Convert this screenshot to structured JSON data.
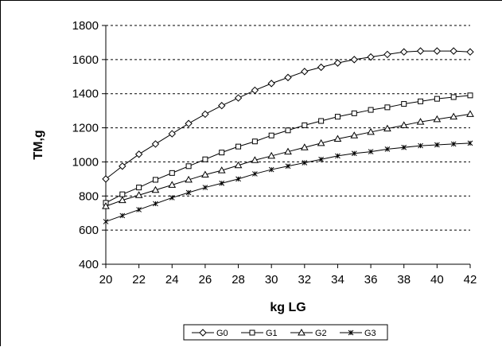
{
  "chart_data": {
    "type": "line",
    "title": "",
    "xlabel": "kg LG",
    "ylabel": "TM,g",
    "xlim": [
      20,
      42
    ],
    "ylim": [
      400,
      1800
    ],
    "xticks": [
      20,
      22,
      24,
      26,
      28,
      30,
      32,
      34,
      36,
      38,
      40,
      42
    ],
    "yticks": [
      400,
      600,
      800,
      1000,
      1200,
      1400,
      1600,
      1800
    ],
    "grid": "horizontal dashed",
    "legend_position": "bottom",
    "x": [
      20,
      21,
      22,
      23,
      24,
      25,
      26,
      27,
      28,
      29,
      30,
      31,
      32,
      33,
      34,
      35,
      36,
      37,
      38,
      39,
      40,
      41,
      42
    ],
    "series": [
      {
        "name": "G0",
        "marker": "diamond",
        "values": [
          900,
          975,
          1045,
          1105,
          1165,
          1225,
          1280,
          1330,
          1375,
          1420,
          1460,
          1495,
          1530,
          1555,
          1580,
          1600,
          1615,
          1630,
          1645,
          1650,
          1650,
          1650,
          1645
        ]
      },
      {
        "name": "G1",
        "marker": "square",
        "values": [
          760,
          810,
          850,
          895,
          935,
          975,
          1015,
          1055,
          1090,
          1120,
          1155,
          1185,
          1215,
          1240,
          1265,
          1285,
          1305,
          1320,
          1340,
          1355,
          1370,
          1380,
          1390
        ]
      },
      {
        "name": "G2",
        "marker": "triangle",
        "values": [
          740,
          775,
          805,
          835,
          865,
          895,
          925,
          950,
          980,
          1010,
          1035,
          1060,
          1085,
          1110,
          1135,
          1155,
          1175,
          1195,
          1215,
          1235,
          1250,
          1265,
          1280
        ]
      },
      {
        "name": "G3",
        "marker": "star",
        "values": [
          650,
          685,
          720,
          755,
          790,
          820,
          850,
          875,
          900,
          930,
          955,
          975,
          995,
          1015,
          1035,
          1050,
          1060,
          1075,
          1085,
          1095,
          1100,
          1105,
          1110
        ]
      }
    ]
  }
}
